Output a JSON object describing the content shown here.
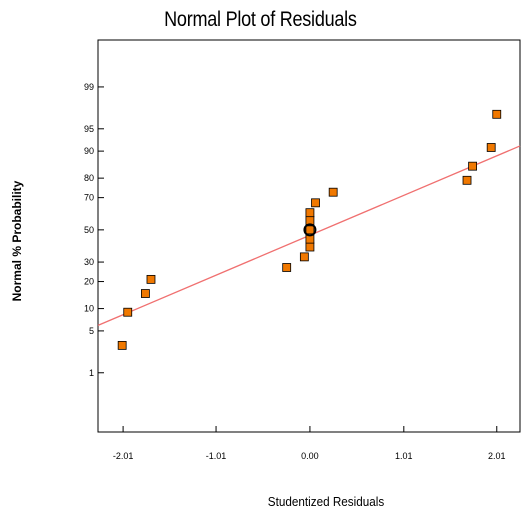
{
  "chart_data": {
    "type": "scatter",
    "title": "Normal Plot of Residuals",
    "xlabel": "Studentized Residuals",
    "ylabel": "Normal % Probability",
    "x_ticks": [
      -2.01,
      -1.01,
      0.0,
      1.01,
      2.01
    ],
    "x_tick_labels": [
      "-2.01",
      "-1.01",
      "0.00",
      "1.01",
      "2.01"
    ],
    "xlim": [
      -2.28,
      2.26
    ],
    "y_scale": "normal-probability",
    "y_ticks": [
      1,
      5,
      10,
      20,
      30,
      50,
      70,
      80,
      90,
      95,
      99
    ],
    "y_tick_labels": [
      "1",
      "5",
      "10",
      "20",
      "30",
      "50",
      "70",
      "80",
      "90",
      "95",
      "99"
    ],
    "ylim": [
      0.05,
      99.9
    ],
    "grid": false,
    "series": [
      {
        "values": [
          {
            "x": -2.02,
            "y": 3
          },
          {
            "x": -1.96,
            "y": 9
          },
          {
            "x": -1.77,
            "y": 15
          },
          {
            "x": -1.71,
            "y": 21
          },
          {
            "x": -0.25,
            "y": 27
          },
          {
            "x": -0.06,
            "y": 33
          },
          {
            "x": 0.0,
            "y": 39
          },
          {
            "x": 0.0,
            "y": 44
          },
          {
            "x": 0.0,
            "y": 50
          },
          {
            "x": 0.0,
            "y": 56
          },
          {
            "x": 0.0,
            "y": 61
          },
          {
            "x": 0.06,
            "y": 67
          },
          {
            "x": 0.25,
            "y": 73
          },
          {
            "x": 1.69,
            "y": 79
          },
          {
            "x": 1.75,
            "y": 85
          },
          {
            "x": 1.95,
            "y": 91
          },
          {
            "x": 2.01,
            "y": 97
          }
        ]
      }
    ],
    "fit_line": {
      "x": [
        -2.28,
        2.26
      ],
      "y": [
        6.0,
        91.4
      ]
    },
    "highlighted_point": {
      "x": 0.0,
      "y": 50
    },
    "colors": {
      "marker_fill": "#F07800",
      "marker_stroke": "#000000",
      "fit_line": "#F07070",
      "axes": "#000000"
    }
  }
}
